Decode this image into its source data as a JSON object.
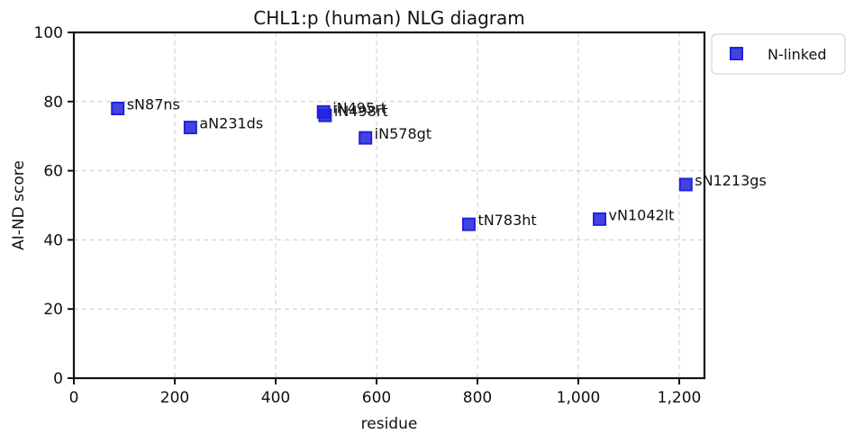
{
  "chart_data": {
    "type": "scatter",
    "title": "CHL1:p (human) NLG diagram",
    "xlabel": "residue",
    "ylabel": "AI-ND score",
    "xlim": [
      0,
      1250
    ],
    "ylim": [
      0,
      100
    ],
    "x_ticks": [
      0,
      200,
      400,
      600,
      800,
      1000,
      1200
    ],
    "x_tick_labels": [
      "0",
      "200",
      "400",
      "600",
      "800",
      "1,000",
      "1,200"
    ],
    "y_ticks": [
      0,
      20,
      40,
      60,
      80,
      100
    ],
    "y_tick_labels": [
      "0",
      "20",
      "40",
      "60",
      "80",
      "100"
    ],
    "grid": true,
    "legend_position": "outside-top-right",
    "series": [
      {
        "name": "N-linked",
        "color": "#2222dd",
        "marker": "square",
        "points": [
          {
            "x": 87,
            "y": 78,
            "label": "sN87ns"
          },
          {
            "x": 231,
            "y": 72.5,
            "label": "aN231ds"
          },
          {
            "x": 495,
            "y": 77,
            "label": "iN495rt"
          },
          {
            "x": 498,
            "y": 76,
            "label": "iN498rt"
          },
          {
            "x": 578,
            "y": 69.5,
            "label": "iN578gt"
          },
          {
            "x": 783,
            "y": 44.5,
            "label": "tN783ht"
          },
          {
            "x": 1042,
            "y": 46,
            "label": "vN1042lt"
          },
          {
            "x": 1213,
            "y": 56,
            "label": "sN1213gs"
          }
        ]
      }
    ]
  }
}
